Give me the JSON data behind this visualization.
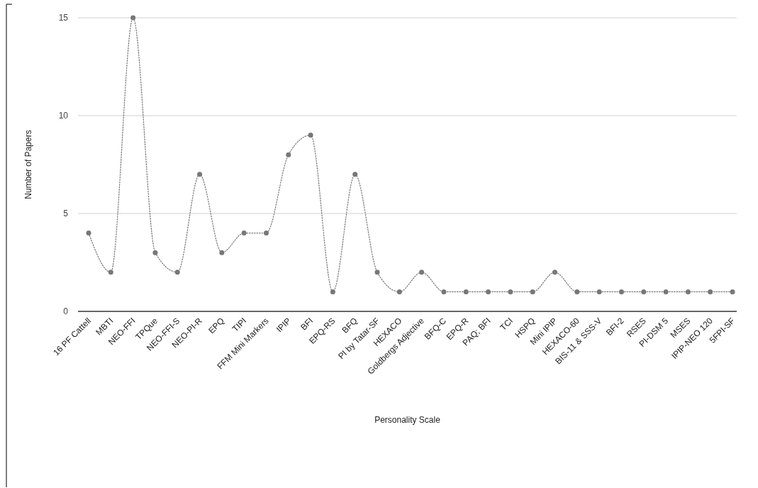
{
  "chart_data": {
    "type": "line",
    "xlabel": "Personality Scale",
    "ylabel": "Number of Papers",
    "categories": [
      "16 PF Cattell",
      "MBTI",
      "NEO-FFI",
      "TPQue",
      "NEO-FFI-S",
      "NEO-PI-R",
      "EPQ",
      "TIPI",
      "FFM Mini Markers",
      "IPIP",
      "BFI",
      "EPQ-RS",
      "BFQ",
      "PI by Tatar-SF",
      "HEXACO",
      "Goldbergs Adjective",
      "BFQ-C",
      "EPQ-R",
      "PAQ; BFI",
      "TCI",
      "HSPQ",
      "Mini IPIP",
      "HEXACO-60",
      "BIS-11 & SSS-V",
      "BFI-2",
      "RSES",
      "PI-DSM 5",
      "MSES",
      "IPIP-NEO 120",
      "5FPI-SF"
    ],
    "series": [
      {
        "color": "#777777",
        "values": [
          4,
          2,
          15,
          3,
          2,
          7,
          3,
          4,
          4,
          8,
          9,
          1,
          7,
          2,
          1,
          2,
          1,
          1,
          1,
          1,
          1,
          2,
          1,
          1,
          1,
          1,
          1,
          1,
          1,
          1
        ]
      }
    ],
    "ylim": [
      0,
      15
    ],
    "yticks": [
      0,
      5,
      10,
      15
    ],
    "grid": "y",
    "marker": "circle",
    "line_style": "dotted"
  }
}
